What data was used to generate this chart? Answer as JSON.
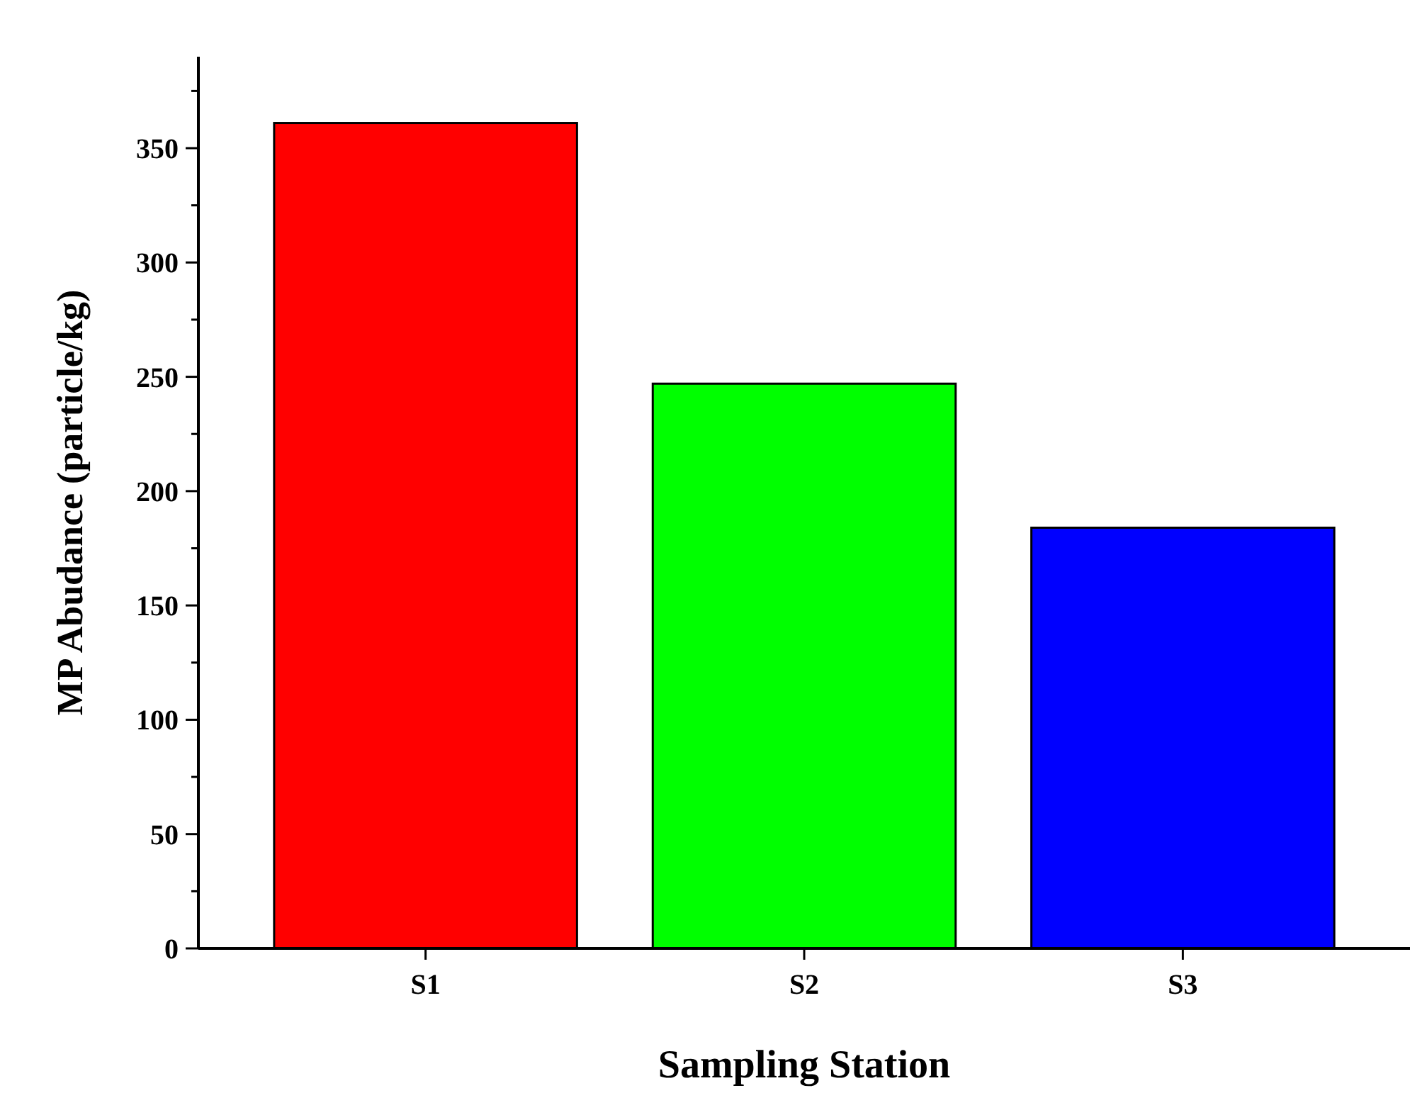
{
  "chart_data": {
    "type": "bar",
    "xlabel": "Sampling Station",
    "ylabel": "MP Abudance (particle/kg)",
    "categories": [
      "S1",
      "S2",
      "S3"
    ],
    "values": [
      361,
      247,
      184
    ],
    "colors": [
      "#ff0000",
      "#00ff00",
      "#0000ff"
    ],
    "ylim": [
      0,
      390
    ],
    "yticks": [
      0,
      {
        "value": 25,
        "label": null
      },
      50,
      {
        "value": 75,
        "label": null
      },
      100,
      {
        "value": 125,
        "label": null
      },
      150,
      {
        "value": 175,
        "label": null
      },
      200,
      {
        "value": 225,
        "label": null
      },
      250,
      {
        "value": 275,
        "label": null
      },
      300,
      {
        "value": 325,
        "label": null
      },
      350,
      {
        "value": 375,
        "label": null
      }
    ],
    "grid": false
  }
}
